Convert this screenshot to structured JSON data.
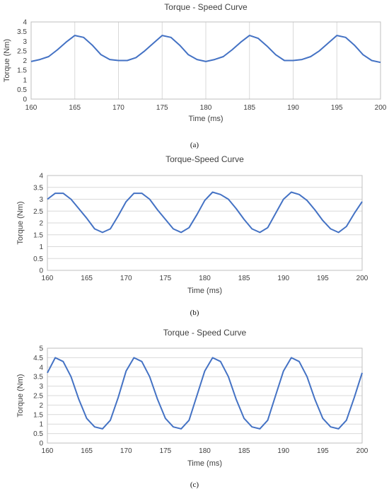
{
  "chart_data": [
    {
      "type": "line",
      "title": "Torque - Speed Curve",
      "xlabel": "Time (ms)",
      "ylabel": "Torque (Nm)",
      "xlim": [
        160,
        200
      ],
      "ylim": [
        0,
        4
      ],
      "xticks": [
        160,
        165,
        170,
        175,
        180,
        185,
        190,
        195,
        200
      ],
      "xtick_labels": [
        "160",
        "165",
        "170",
        "175",
        "180",
        "185",
        "190",
        "195",
        "200"
      ],
      "yticks": [
        0,
        0.5,
        1,
        1.5,
        2,
        2.5,
        3,
        3.5,
        4
      ],
      "ytick_labels": [
        "0",
        "0.5",
        "1",
        "1.5",
        "2",
        "2.5",
        "3",
        "3.5",
        "4"
      ],
      "grid": "vertical",
      "color": "#4472c4",
      "caption": "(a)",
      "series": [
        {
          "x": [
            160,
            161,
            162,
            163,
            164,
            165,
            166,
            167,
            168,
            169,
            170,
            171,
            172,
            173,
            174,
            175,
            176,
            177,
            178,
            179,
            180,
            181,
            182,
            183,
            184,
            185,
            186,
            187,
            188,
            189,
            190,
            191,
            192,
            193,
            194,
            195,
            196,
            197,
            198,
            199,
            200
          ],
          "y": [
            1.95,
            2.05,
            2.2,
            2.55,
            2.95,
            3.3,
            3.2,
            2.8,
            2.3,
            2.05,
            2.0,
            2.0,
            2.15,
            2.5,
            2.9,
            3.3,
            3.2,
            2.8,
            2.3,
            2.05,
            1.95,
            2.05,
            2.2,
            2.55,
            2.95,
            3.3,
            3.15,
            2.75,
            2.3,
            2.0,
            2.0,
            2.05,
            2.2,
            2.5,
            2.9,
            3.3,
            3.2,
            2.8,
            2.3,
            2.0,
            1.9
          ]
        }
      ]
    },
    {
      "type": "line",
      "title": "Torque-Speed Curve",
      "xlabel": "Time (ms)",
      "ylabel": "Torque (Nm)",
      "xlim": [
        160,
        200
      ],
      "ylim": [
        0,
        4
      ],
      "xticks": [
        160,
        165,
        170,
        175,
        180,
        185,
        190,
        195,
        200
      ],
      "xtick_labels": [
        "160",
        "165",
        "170",
        "175",
        "180",
        "185",
        "190",
        "195",
        "200"
      ],
      "yticks": [
        0,
        0.5,
        1,
        1.5,
        2,
        2.5,
        3,
        3.5,
        4
      ],
      "ytick_labels": [
        "0",
        "0.5",
        "1",
        "1.5",
        "2",
        "2.5",
        "3",
        "3.5",
        "4"
      ],
      "grid": "horizontal",
      "color": "#4472c4",
      "caption": "(b)",
      "series": [
        {
          "x": [
            160,
            161,
            162,
            163,
            164,
            165,
            166,
            167,
            168,
            169,
            170,
            171,
            172,
            173,
            174,
            175,
            176,
            177,
            178,
            179,
            180,
            181,
            182,
            183,
            184,
            185,
            186,
            187,
            188,
            189,
            190,
            191,
            192,
            193,
            194,
            195,
            196,
            197,
            198,
            199,
            200
          ],
          "y": [
            3.0,
            3.25,
            3.25,
            3.0,
            2.6,
            2.2,
            1.75,
            1.6,
            1.75,
            2.3,
            2.9,
            3.25,
            3.25,
            3.0,
            2.55,
            2.15,
            1.75,
            1.6,
            1.8,
            2.35,
            2.95,
            3.3,
            3.2,
            3.0,
            2.6,
            2.15,
            1.75,
            1.6,
            1.8,
            2.4,
            3.0,
            3.3,
            3.2,
            2.95,
            2.55,
            2.1,
            1.75,
            1.6,
            1.85,
            2.4,
            2.9
          ]
        }
      ]
    },
    {
      "type": "line",
      "title": "Torque - Speed Curve",
      "xlabel": "Time (ms)",
      "ylabel": "Torque (Nm)",
      "xlim": [
        160,
        200
      ],
      "ylim": [
        0,
        5
      ],
      "xticks": [
        160,
        165,
        170,
        175,
        180,
        185,
        190,
        195,
        200
      ],
      "xtick_labels": [
        "160",
        "165",
        "170",
        "175",
        "180",
        "185",
        "190",
        "195",
        "200"
      ],
      "yticks": [
        0,
        0.5,
        1,
        1.5,
        2,
        2.5,
        3,
        3.5,
        4,
        4.5,
        5
      ],
      "ytick_labels": [
        "0",
        "0.5",
        "1",
        "1.5",
        "2",
        "2.5",
        "3",
        "3.5",
        "4",
        "4.5",
        "5"
      ],
      "grid": "horizontal",
      "color": "#4472c4",
      "caption": "(c)",
      "series": [
        {
          "x": [
            160,
            161,
            162,
            163,
            164,
            165,
            166,
            167,
            168,
            169,
            170,
            171,
            172,
            173,
            174,
            175,
            176,
            177,
            178,
            179,
            180,
            181,
            182,
            183,
            184,
            185,
            186,
            187,
            188,
            189,
            190,
            191,
            192,
            193,
            194,
            195,
            196,
            197,
            198,
            199,
            200
          ],
          "y": [
            3.7,
            4.5,
            4.3,
            3.5,
            2.3,
            1.3,
            0.85,
            0.75,
            1.2,
            2.4,
            3.8,
            4.5,
            4.3,
            3.5,
            2.3,
            1.3,
            0.85,
            0.75,
            1.2,
            2.5,
            3.8,
            4.5,
            4.3,
            3.5,
            2.3,
            1.3,
            0.85,
            0.75,
            1.2,
            2.5,
            3.8,
            4.5,
            4.3,
            3.5,
            2.3,
            1.3,
            0.85,
            0.75,
            1.2,
            2.4,
            3.7
          ]
        }
      ]
    }
  ]
}
